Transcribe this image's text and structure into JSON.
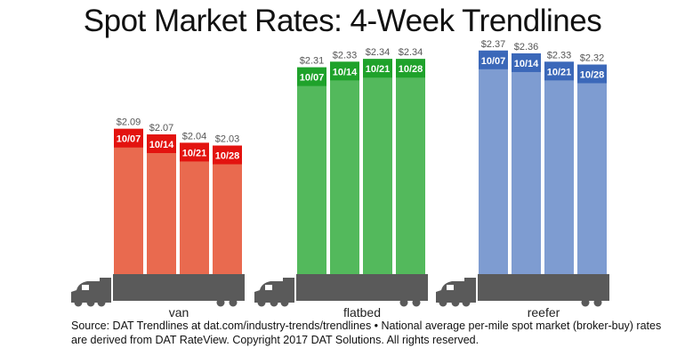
{
  "chart_data": {
    "type": "bar",
    "title": "Spot Market Rates: 4-Week Trendlines",
    "categories": [
      "10/07",
      "10/14",
      "10/21",
      "10/28"
    ],
    "groups": [
      {
        "name": "van",
        "values": [
          2.09,
          2.07,
          2.04,
          2.03
        ],
        "labels": [
          "$2.09",
          "$2.07",
          "$2.04",
          "$2.03"
        ],
        "color": "#e96a4f",
        "header_color": "#e3130f"
      },
      {
        "name": "flatbed",
        "values": [
          2.31,
          2.33,
          2.34,
          2.34
        ],
        "labels": [
          "$2.31",
          "$2.33",
          "$2.34",
          "$2.34"
        ],
        "color": "#53b95c",
        "header_color": "#1fa22b"
      },
      {
        "name": "reefer",
        "values": [
          2.37,
          2.36,
          2.33,
          2.32
        ],
        "labels": [
          "$2.37",
          "$2.36",
          "$2.33",
          "$2.32"
        ],
        "color": "#7e9cd1",
        "header_color": "#3b68b9"
      }
    ],
    "truck_color": "#5a5a5a"
  },
  "source": "Source: DAT Trendlines at dat.com/industry-trends/trendlines • National average per-mile spot market (broker-buy) rates are derived from DAT RateView. Copyright 2017 DAT Solutions. All rights reserved."
}
